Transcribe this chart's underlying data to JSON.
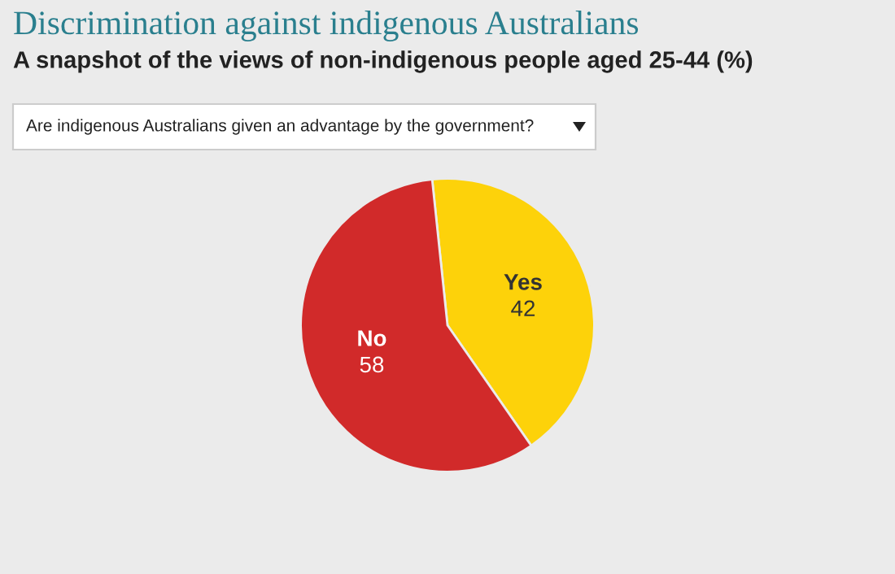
{
  "chart_data": {
    "type": "pie",
    "title": "Discrimination against indigenous Australians",
    "subtitle": "A snapshot of the views of non-indigenous people aged 25-44 (%)",
    "annotations": [
      "Are indigenous Australians given an advantage by the government?"
    ],
    "categories": [
      "Yes",
      "No"
    ],
    "values": [
      42,
      58
    ],
    "colors": [
      "#fdd20a",
      "#d12a2a"
    ],
    "data_labels": true
  }
}
